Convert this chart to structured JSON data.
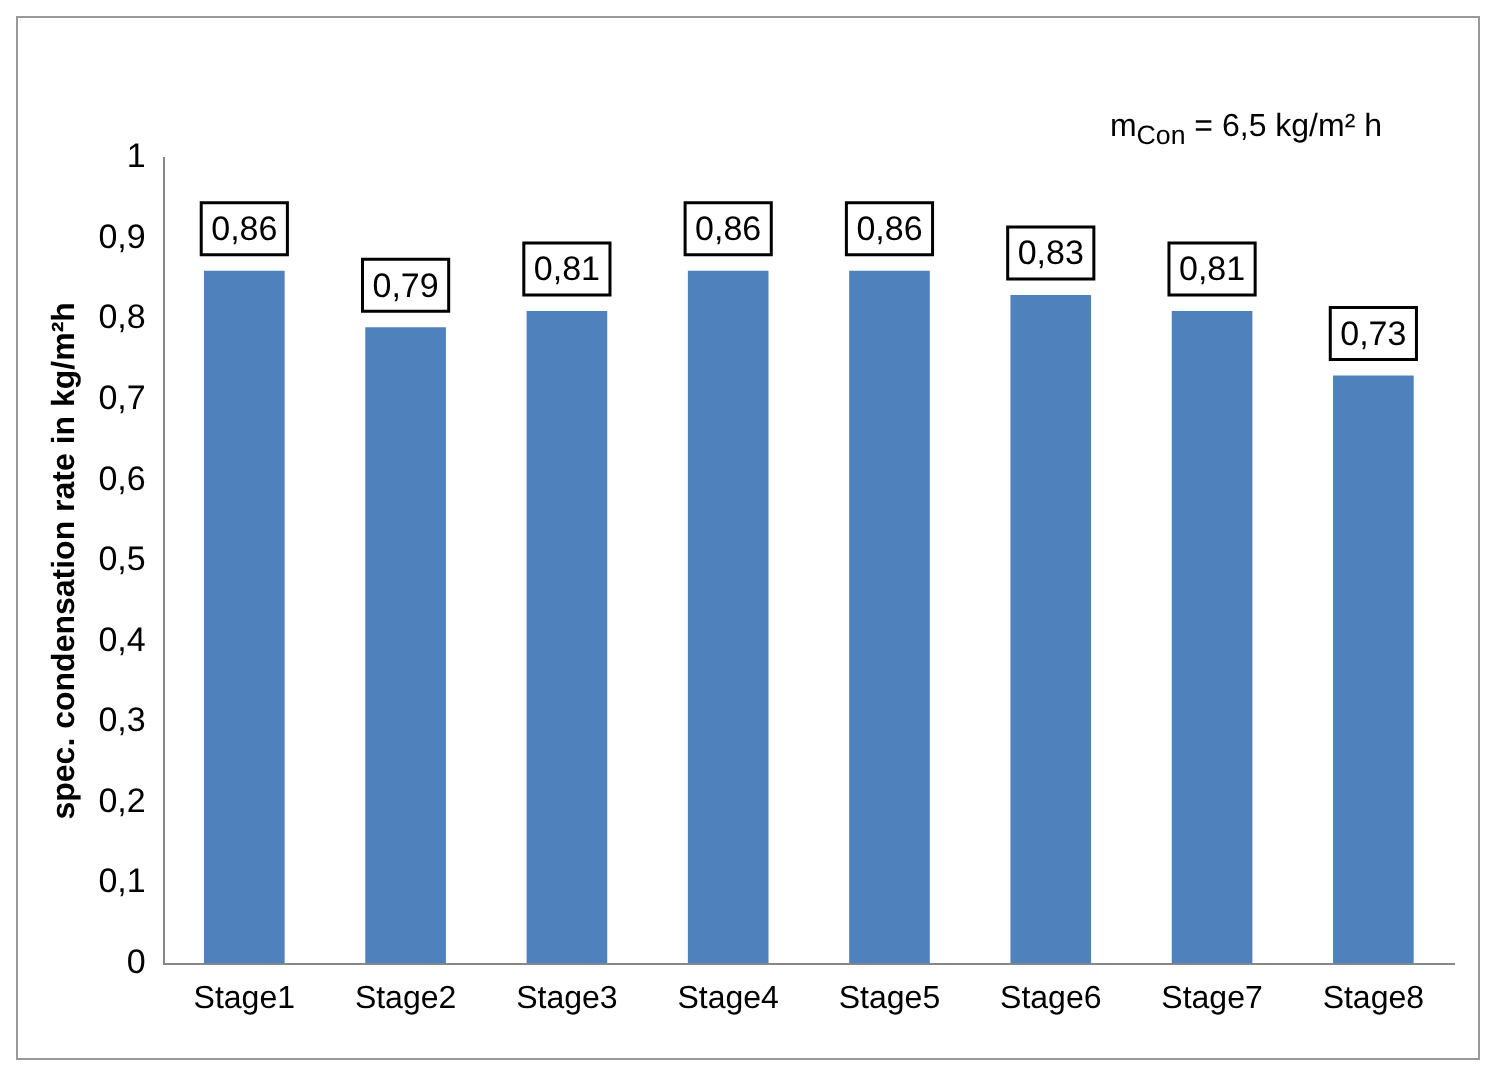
{
  "chart_data": {
    "type": "bar",
    "ylabel": "spec. condensation rate in kg/m²h",
    "annotations": [
      "m$_{Con}$ = 6,5 kg/m² h"
    ],
    "categories": [
      "Stage1",
      "Stage2",
      "Stage3",
      "Stage4",
      "Stage5",
      "Stage6",
      "Stage7",
      "Stage8"
    ],
    "values": [
      0.86,
      0.79,
      0.81,
      0.86,
      0.86,
      0.83,
      0.81,
      0.73
    ],
    "value_labels": [
      "0,86",
      "0,79",
      "0,81",
      "0,86",
      "0,86",
      "0,83",
      "0,81",
      "0,73"
    ],
    "color": "#4f81bd",
    "ylim": [
      0,
      1
    ],
    "yticks": [
      {
        "value": 0,
        "label": "0"
      },
      {
        "value": 0.1,
        "label": "0,1"
      },
      {
        "value": 0.2,
        "label": "0,2"
      },
      {
        "value": 0.3,
        "label": "0,3"
      },
      {
        "value": 0.4,
        "label": "0,4"
      },
      {
        "value": 0.5,
        "label": "0,5"
      },
      {
        "value": 0.6,
        "label": "0,6"
      },
      {
        "value": 0.7,
        "label": "0,7"
      },
      {
        "value": 0.8,
        "label": "0,8"
      },
      {
        "value": 0.9,
        "label": "0,9"
      },
      {
        "value": 1,
        "label": "1"
      }
    ],
    "grid": false,
    "legend": false
  }
}
